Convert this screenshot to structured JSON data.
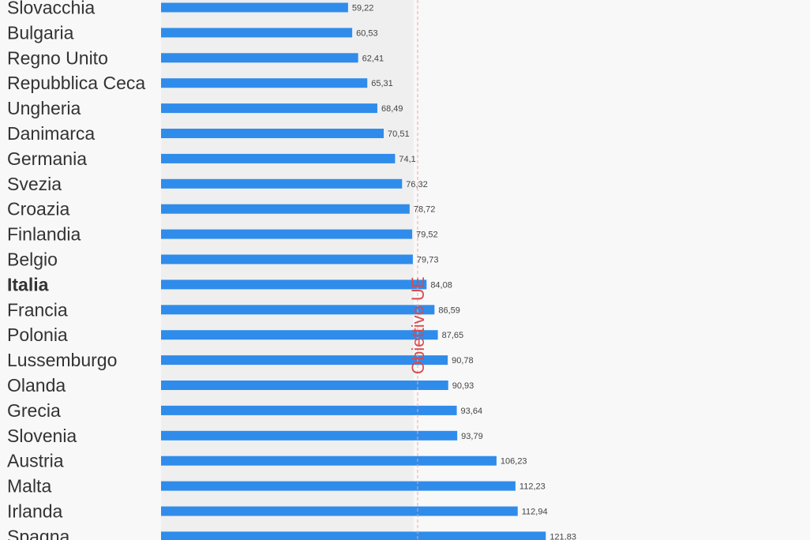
{
  "chart_data": {
    "type": "bar",
    "orientation": "horizontal",
    "categories": [
      "Slovacchia",
      "Bulgaria",
      "Regno Unito",
      "Repubblica Ceca",
      "Ungheria",
      "Danimarca",
      "Germania",
      "Svezia",
      "Croazia",
      "Finlandia",
      "Belgio",
      "Italia",
      "Francia",
      "Polonia",
      "Lussemburgo",
      "Olanda",
      "Grecia",
      "Slovenia",
      "Austria",
      "Malta",
      "Irlanda",
      "Spagna"
    ],
    "values": [
      59.22,
      60.53,
      62.41,
      65.31,
      68.49,
      70.51,
      74.1,
      76.32,
      78.72,
      79.52,
      79.73,
      84.08,
      86.59,
      87.65,
      90.78,
      90.93,
      93.64,
      93.79,
      106.23,
      112.23,
      112.94,
      121.83
    ],
    "value_labels": [
      "59,22",
      "60,53",
      "62,41",
      "65,31",
      "68,49",
      "70,51",
      "74,1",
      "76,32",
      "78,72",
      "79,52",
      "79,73",
      "84,08",
      "86,59",
      "87,65",
      "90,78",
      "90,93",
      "93,64",
      "93,79",
      "106,23",
      "112,23",
      "112,94",
      "121,83"
    ],
    "highlight": "Italia",
    "reference_line": {
      "value": 80,
      "label": "Obiettivo UE"
    },
    "shaded_range": [
      0,
      80
    ],
    "xlim": [
      0,
      200
    ],
    "grid": false,
    "colors": {
      "bar": "#2f8ceb",
      "reference": "#d94a4a",
      "shade": "#efefef",
      "background": "#f8f8f8"
    }
  }
}
